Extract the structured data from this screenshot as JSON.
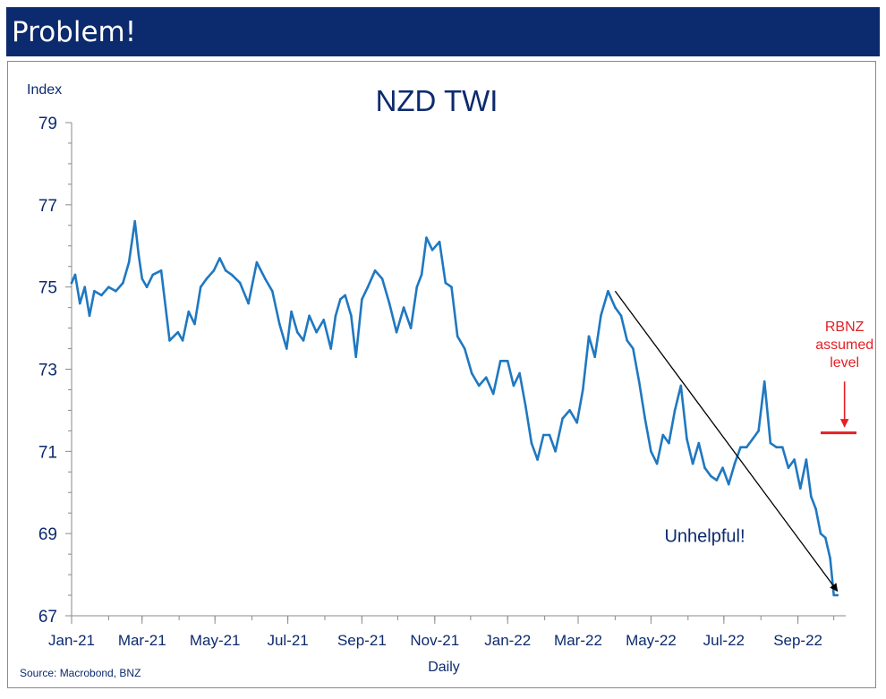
{
  "header": {
    "title": "Problem!"
  },
  "source": "Source: Macrobond, BNZ",
  "colors": {
    "banner": "#0c2a6e",
    "series": "#1f78c1",
    "text": "#0c2a6e",
    "threshold": "#e32026",
    "arrow": "#000000"
  },
  "chart_data": {
    "type": "line",
    "title": "NZD TWI",
    "ylabel": "Index",
    "xlabel": "Daily",
    "ylim": [
      67,
      79
    ],
    "yticks": [
      67,
      69,
      71,
      73,
      75,
      77,
      79
    ],
    "xticks": [
      "Jan-21",
      "Mar-21",
      "May-21",
      "Jul-21",
      "Sep-21",
      "Nov-21",
      "Jan-22",
      "Mar-22",
      "May-22",
      "Jul-22",
      "Sep-22"
    ],
    "series": [
      {
        "x": [
          "2021-01-01",
          "2021-01-04",
          "2021-01-08",
          "2021-01-12",
          "2021-01-16",
          "2021-01-20",
          "2021-01-26",
          "2021-02-01",
          "2021-02-07",
          "2021-02-13",
          "2021-02-18",
          "2021-02-23",
          "2021-02-26",
          "2021-03-01",
          "2021-03-05",
          "2021-03-10",
          "2021-03-17",
          "2021-03-24",
          "2021-03-31",
          "2021-04-04",
          "2021-04-09",
          "2021-04-14",
          "2021-04-19",
          "2021-04-24",
          "2021-04-30",
          "2021-05-05",
          "2021-05-10",
          "2021-05-15",
          "2021-05-22",
          "2021-05-29",
          "2021-06-05",
          "2021-06-12",
          "2021-06-18",
          "2021-06-24",
          "2021-06-30",
          "2021-07-04",
          "2021-07-09",
          "2021-07-14",
          "2021-07-19",
          "2021-07-25",
          "2021-07-31",
          "2021-08-06",
          "2021-08-10",
          "2021-08-14",
          "2021-08-18",
          "2021-08-23",
          "2021-08-27",
          "2021-09-01",
          "2021-09-06",
          "2021-09-12",
          "2021-09-18",
          "2021-09-24",
          "2021-09-30",
          "2021-10-06",
          "2021-10-12",
          "2021-10-17",
          "2021-10-21",
          "2021-10-25",
          "2021-10-30",
          "2021-11-05",
          "2021-11-10",
          "2021-11-15",
          "2021-11-20",
          "2021-11-26",
          "2021-12-02",
          "2021-12-08",
          "2021-12-14",
          "2021-12-20",
          "2021-12-26",
          "2022-01-01",
          "2022-01-06",
          "2022-01-11",
          "2022-01-16",
          "2022-01-21",
          "2022-01-26",
          "2022-01-31",
          "2022-02-05",
          "2022-02-10",
          "2022-02-16",
          "2022-02-22",
          "2022-02-28",
          "2022-03-05",
          "2022-03-10",
          "2022-03-15",
          "2022-03-20",
          "2022-03-26",
          "2022-04-01",
          "2022-04-06",
          "2022-04-11",
          "2022-04-16",
          "2022-04-21",
          "2022-04-26",
          "2022-05-01",
          "2022-05-06",
          "2022-05-11",
          "2022-05-16",
          "2022-05-21",
          "2022-05-26",
          "2022-05-31",
          "2022-06-05",
          "2022-06-10",
          "2022-06-15",
          "2022-06-20",
          "2022-06-25",
          "2022-06-30",
          "2022-07-05",
          "2022-07-10",
          "2022-07-15",
          "2022-07-20",
          "2022-07-25",
          "2022-07-30",
          "2022-08-04",
          "2022-08-09",
          "2022-08-14",
          "2022-08-19",
          "2022-08-24",
          "2022-08-29",
          "2022-09-03",
          "2022-09-08",
          "2022-09-12",
          "2022-09-16",
          "2022-09-20",
          "2022-09-24",
          "2022-09-28",
          "2022-10-01",
          "2022-10-04"
        ],
        "values": [
          75.1,
          75.3,
          74.6,
          75.0,
          74.3,
          74.9,
          74.8,
          75.0,
          74.9,
          75.1,
          75.6,
          76.6,
          75.8,
          75.2,
          75.0,
          75.3,
          75.4,
          73.7,
          73.9,
          73.7,
          74.4,
          74.1,
          75.0,
          75.2,
          75.4,
          75.7,
          75.4,
          75.3,
          75.1,
          74.6,
          75.6,
          75.2,
          74.9,
          74.1,
          73.5,
          74.4,
          73.9,
          73.7,
          74.3,
          73.9,
          74.2,
          73.5,
          74.3,
          74.7,
          74.8,
          74.3,
          73.3,
          74.7,
          75.0,
          75.4,
          75.2,
          74.6,
          73.9,
          74.5,
          74.0,
          75.0,
          75.3,
          76.2,
          75.9,
          76.1,
          75.1,
          75.0,
          73.8,
          73.5,
          72.9,
          72.6,
          72.8,
          72.4,
          73.2,
          73.2,
          72.6,
          72.9,
          72.1,
          71.2,
          70.8,
          71.4,
          71.4,
          71.0,
          71.8,
          72.0,
          71.7,
          72.5,
          73.8,
          73.3,
          74.3,
          74.9,
          74.5,
          74.3,
          73.7,
          73.5,
          72.7,
          71.8,
          71.0,
          70.7,
          71.4,
          71.2,
          72.0,
          72.6,
          71.3,
          70.7,
          71.2,
          70.6,
          70.4,
          70.3,
          70.6,
          70.2,
          70.7,
          71.1,
          71.1,
          71.3,
          71.5,
          72.7,
          71.2,
          71.1,
          71.1,
          70.6,
          70.8,
          70.1,
          70.8,
          69.9,
          69.6,
          69.0,
          68.9,
          68.4,
          67.5,
          67.5
        ]
      }
    ],
    "annotations": [
      {
        "type": "text",
        "text": "Unhelpful!",
        "x": "2022-06-15",
        "y": 68.8
      },
      {
        "type": "text",
        "text": "RBNZ",
        "x": "2022-10-10",
        "y": 73.4
      },
      {
        "type": "text",
        "text": "assumed",
        "x": "2022-10-10",
        "y": 73.4
      },
      {
        "type": "text",
        "text": "level",
        "x": "2022-10-10",
        "y": 73.4
      },
      {
        "type": "hline",
        "x1": "2022-09-20",
        "x2": "2022-10-20",
        "y": 71.45
      },
      {
        "type": "arrow",
        "x1": "2022-10-10",
        "y1": 72.7,
        "x2": "2022-10-10",
        "y2": 71.6
      },
      {
        "type": "arrow",
        "x1": "2022-04-01",
        "y1": 74.9,
        "x2": "2022-10-04",
        "y2": 67.6
      }
    ]
  }
}
